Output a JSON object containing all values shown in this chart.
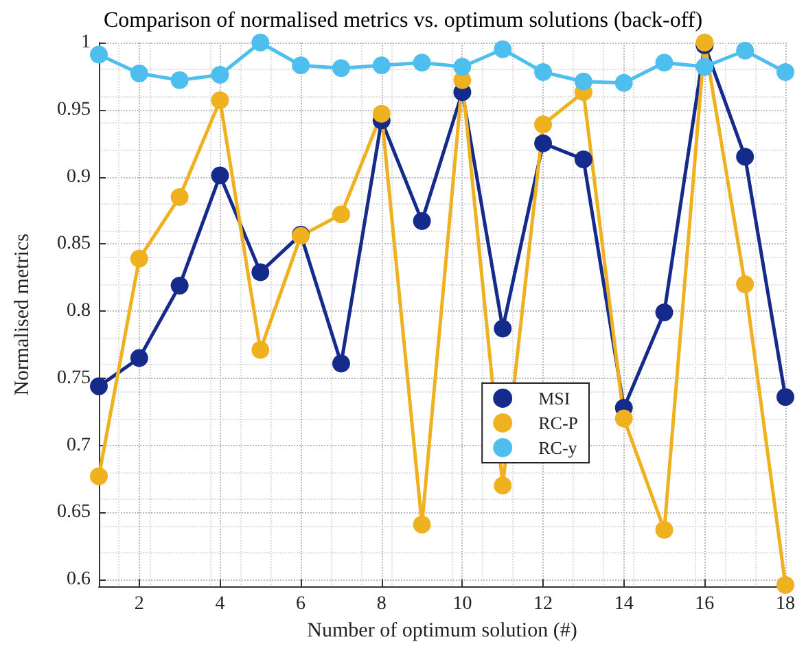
{
  "chart_data": {
    "type": "line",
    "title": "Comparison of normalised metrics vs. optimum solutions (back-off)",
    "xlabel": "Number of optimum solution (#)",
    "ylabel": "Normalised metrics",
    "x": [
      1,
      2,
      3,
      4,
      5,
      6,
      7,
      8,
      9,
      10,
      11,
      12,
      13,
      14,
      15,
      16,
      17,
      18
    ],
    "series": [
      {
        "name": "MSI",
        "color": "#142b8c",
        "values": [
          0.744,
          0.765,
          0.819,
          0.901,
          0.829,
          0.857,
          0.761,
          0.942,
          0.867,
          0.963,
          0.787,
          0.925,
          0.913,
          0.728,
          0.799,
          0.998,
          0.915,
          0.736
        ]
      },
      {
        "name": "RC-P",
        "color": "#efb120",
        "values": [
          0.677,
          0.839,
          0.885,
          0.957,
          0.771,
          0.856,
          0.872,
          0.947,
          0.641,
          0.972,
          0.67,
          0.939,
          0.963,
          0.72,
          0.637,
          1.0,
          0.82,
          0.596
        ]
      },
      {
        "name": "RC-y",
        "color": "#4dbeee",
        "values": [
          0.991,
          0.977,
          0.972,
          0.976,
          1.0,
          0.983,
          0.981,
          0.983,
          0.985,
          0.982,
          0.995,
          0.978,
          0.971,
          0.97,
          0.985,
          0.982,
          0.994,
          0.978
        ]
      }
    ],
    "xlim": [
      1,
      18
    ],
    "xticks": [
      2,
      4,
      6,
      8,
      10,
      12,
      14,
      16,
      18
    ],
    "ylim": [
      0.595,
      1
    ],
    "yticks": [
      0.6,
      0.65,
      0.7,
      0.75,
      0.8,
      0.85,
      0.9,
      0.95,
      1
    ],
    "grid": true,
    "legend": "right",
    "marker": "circle",
    "line_style": "solid"
  }
}
